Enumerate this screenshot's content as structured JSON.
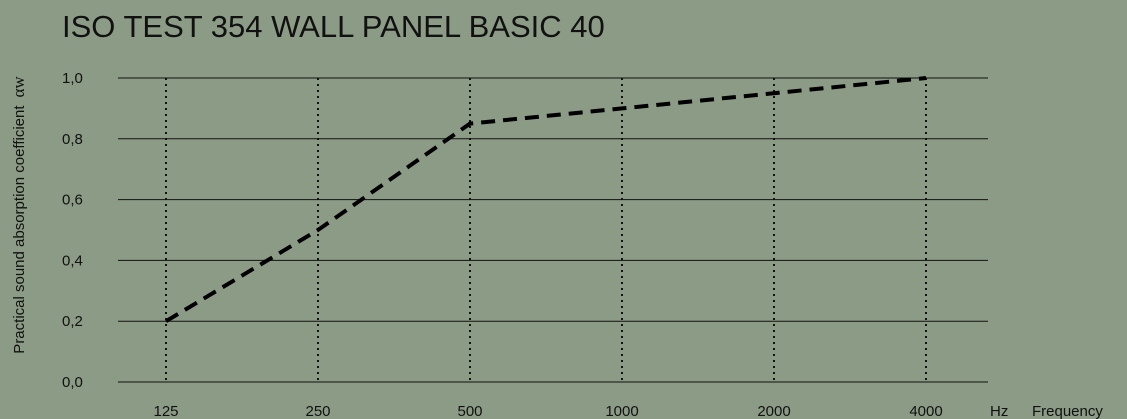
{
  "chart_data": {
    "type": "line",
    "title": "ISO TEST 354 WALL PANEL BASIC 40",
    "ylabel": "Practical sound absorption coefficient",
    "ylabel_symbol": "αw",
    "xlabel_unit": "Hz",
    "xlabel": "Frequency",
    "categories": [
      "125",
      "250",
      "500",
      "1000",
      "2000",
      "4000"
    ],
    "y_ticks": [
      "0,0",
      "0,2",
      "0,4",
      "0,6",
      "0,8",
      "1,0"
    ],
    "ylim": [
      0,
      1.0
    ],
    "values": [
      0.2,
      0.5,
      0.85,
      0.9,
      0.95,
      1.0
    ],
    "line_style": "dashed",
    "grid": "horizontal solid, vertical dotted at each frequency",
    "legend": "none"
  },
  "colors": {
    "background": "#8c9b86",
    "ink": "#111111",
    "series": "#000000"
  }
}
